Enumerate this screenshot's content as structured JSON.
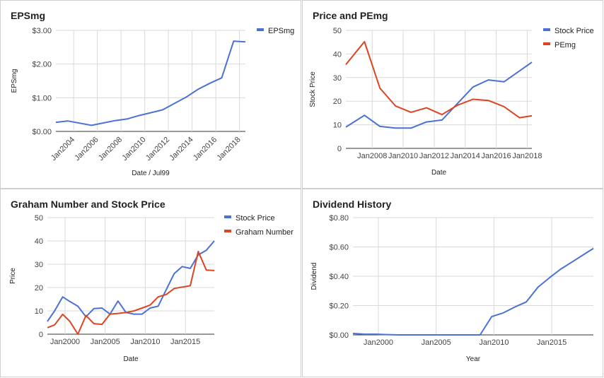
{
  "colors": {
    "blue": "#4a72d4",
    "red": "#dc4422",
    "grid": "#d9d9d9",
    "axis": "#333333"
  },
  "chart_data": [
    {
      "type": "line",
      "title": "EPSmg",
      "xlabel": "Date / Jul99",
      "ylabel": "EPSmg",
      "x_ticks": [
        "Jan2004",
        "Jan2006",
        "Jan2008",
        "Jan2010",
        "Jan2012",
        "Jan2014",
        "Jan2016",
        "Jan2018"
      ],
      "y_ticks": [
        "$0.00",
        "$1.00",
        "$2.00",
        "$3.00"
      ],
      "xlim": [
        2002.5,
        2018.5
      ],
      "ylim": [
        0,
        3
      ],
      "tick_rotate": true,
      "legend": "right",
      "grid": true,
      "series": [
        {
          "name": "EPSmg",
          "color": "#4a72d4",
          "x": [
            2002.5,
            2003.5,
            2005.5,
            2007.5,
            2008.5,
            2009.5,
            2011.5,
            2013.5,
            2014.5,
            2015.5,
            2016.5,
            2017.5,
            2018.5
          ],
          "y": [
            0.27,
            0.31,
            0.18,
            0.32,
            0.37,
            0.47,
            0.64,
            1.02,
            1.25,
            1.43,
            1.59,
            2.68,
            2.66
          ]
        }
      ]
    },
    {
      "type": "line",
      "title": "Price and PEmg",
      "xlabel": "Date",
      "ylabel": "Stock Price",
      "x_ticks": [
        "Jan2008",
        "Jan2010",
        "Jan2012",
        "Jan2014",
        "Jan2016",
        "Jan2018"
      ],
      "y_ticks": [
        "0",
        "10",
        "20",
        "30",
        "40",
        "50"
      ],
      "xlim": [
        2006.3,
        2018.3
      ],
      "ylim": [
        0,
        50
      ],
      "tick_rotate": false,
      "legend": "right",
      "grid": true,
      "series": [
        {
          "name": "Stock Price",
          "color": "#4a72d4",
          "x": [
            2006.3,
            2007.5,
            2008.5,
            2009.5,
            2010.5,
            2011.5,
            2012.5,
            2014.5,
            2015.5,
            2016.5,
            2018.3
          ],
          "y": [
            9,
            14,
            9.3,
            8.6,
            8.6,
            11.2,
            12,
            26,
            29,
            28.2,
            36.5
          ]
        },
        {
          "name": "PEmg",
          "color": "#dc4422",
          "x": [
            2006.3,
            2007.5,
            2008.5,
            2009.5,
            2010.5,
            2011.5,
            2012.5,
            2013.5,
            2014.5,
            2015.5,
            2016.5,
            2017.5,
            2018.3
          ],
          "y": [
            35.5,
            45.2,
            25.5,
            18,
            15.3,
            17.2,
            14.3,
            18.3,
            20.8,
            20.3,
            17.7,
            13,
            13.8
          ]
        }
      ]
    },
    {
      "type": "line",
      "title": "Graham Number and Stock Price",
      "xlabel": "Date",
      "ylabel": "Price",
      "x_ticks": [
        "Jan2000",
        "Jan2005",
        "Jan2010",
        "Jan2015"
      ],
      "y_ticks": [
        "0",
        "10",
        "20",
        "30",
        "40",
        "50"
      ],
      "xlim": [
        1997.8,
        2018.6
      ],
      "ylim": [
        0,
        50
      ],
      "tick_rotate": false,
      "legend": "right",
      "grid": true,
      "series": [
        {
          "name": "Stock Price",
          "color": "#4a72d4",
          "x": [
            1997.8,
            1998.7,
            1999.7,
            2000.6,
            2001.6,
            2002.6,
            2003.6,
            2004.6,
            2005.6,
            2006.6,
            2007.6,
            2008.6,
            2009.6,
            2010.6,
            2011.6,
            2012.6,
            2013.6,
            2014.6,
            2015.6,
            2016.6,
            2017.6,
            2018.6
          ],
          "y": [
            5.5,
            10,
            16,
            14,
            12,
            7.5,
            11,
            11.2,
            8.6,
            14.2,
            9.3,
            8.6,
            8.6,
            11.2,
            12,
            19,
            26,
            29,
            28.2,
            34,
            36,
            40
          ]
        },
        {
          "name": "Graham Number",
          "color": "#dc4422",
          "x": [
            1997.8,
            1998.7,
            1999.7,
            2000.6,
            2001.6,
            2002.6,
            2003.6,
            2004.6,
            2005.6,
            2006.6,
            2007.6,
            2008.6,
            2009.6,
            2010.6,
            2011.6,
            2012.6,
            2013.6,
            2014.6,
            2015.6,
            2016.6,
            2017.6,
            2018.6
          ],
          "y": [
            2.8,
            4,
            8.5,
            5.5,
            0,
            8,
            4.5,
            4.2,
            8.6,
            8.9,
            9.3,
            10,
            11.2,
            12.5,
            16,
            17,
            19.6,
            20.2,
            20.8,
            35.5,
            27.5,
            27.3
          ]
        }
      ]
    },
    {
      "type": "line",
      "title": "Dividend History",
      "xlabel": "Year",
      "ylabel": "Dividend",
      "x_ticks": [
        "Jan2000",
        "Jan2005",
        "Jan2010",
        "Jan2015"
      ],
      "y_ticks": [
        "$0.00",
        "$0.20",
        "$0.40",
        "$0.60",
        "$0.80"
      ],
      "xlim": [
        1997.8,
        2018.6
      ],
      "ylim": [
        0,
        0.8
      ],
      "tick_rotate": false,
      "legend": "none",
      "grid": true,
      "series": [
        {
          "name": "",
          "color": "#4a72d4",
          "x": [
            1997.8,
            1998.8,
            1999.8,
            2000.8,
            2001.8,
            2002.8,
            2003.8,
            2004.8,
            2005.8,
            2006.8,
            2007.8,
            2008.8,
            2009.8,
            2010.8,
            2011.8,
            2012.8,
            2013.8,
            2014.8,
            2015.8,
            2016.8,
            2017.8,
            2018.6
          ],
          "y": [
            0.01,
            0.005,
            0.005,
            0.002,
            0,
            0,
            0,
            0,
            0,
            0,
            0,
            0,
            0.125,
            0.15,
            0.19,
            0.225,
            0.325,
            0.39,
            0.45,
            0.5,
            0.55,
            0.59
          ]
        }
      ]
    }
  ]
}
